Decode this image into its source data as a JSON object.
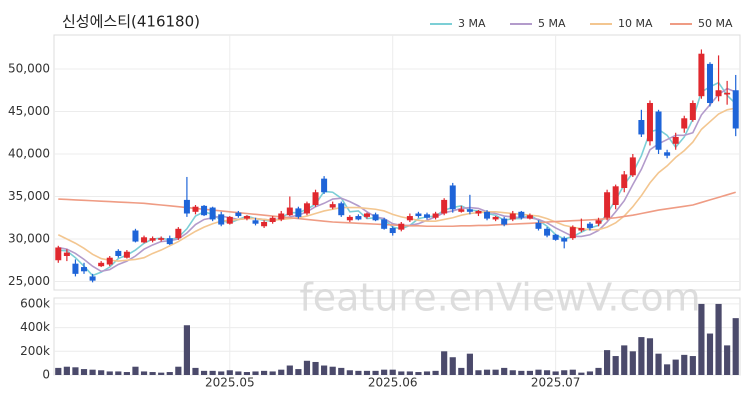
{
  "chart_data": {
    "type": "candlestick",
    "title": "신성에스티(416180)",
    "watermark": "feature.enViewV.com",
    "categories": [
      null,
      null,
      null,
      null,
      null,
      null,
      null,
      null,
      null,
      null,
      null,
      null,
      null,
      null,
      null,
      null,
      null,
      null,
      null,
      null,
      "2025.05",
      null,
      null,
      null,
      null,
      null,
      null,
      null,
      null,
      null,
      null,
      null,
      null,
      null,
      null,
      null,
      null,
      null,
      null,
      "2025.06",
      null,
      null,
      null,
      null,
      null,
      null,
      null,
      null,
      null,
      null,
      null,
      null,
      null,
      null,
      null,
      null,
      null,
      null,
      "2025.07",
      null,
      null,
      null,
      null,
      null,
      null,
      null,
      null,
      null,
      null,
      null,
      null,
      null,
      null,
      null,
      null,
      null,
      null,
      null,
      null,
      null
    ],
    "open": [
      27500,
      28000,
      27100,
      26700,
      25600,
      26800,
      27000,
      28600,
      27800,
      31000,
      29600,
      29800,
      29900,
      30100,
      30100,
      34600,
      33200,
      33900,
      33700,
      32900,
      31800,
      33100,
      32400,
      32200,
      31500,
      32000,
      32300,
      32800,
      33600,
      33000,
      34000,
      37100,
      33700,
      34200,
      32200,
      32700,
      32600,
      32900,
      32300,
      31300,
      31100,
      32200,
      33000,
      32900,
      32500,
      33000,
      36300,
      33200,
      33500,
      33000,
      33200,
      32300,
      32400,
      32300,
      33200,
      32400,
      31900,
      31200,
      30500,
      30100,
      30100,
      31000,
      31800,
      31800,
      32500,
      34000,
      36000,
      37500,
      44000,
      41500,
      45000,
      40200,
      41200,
      43000,
      44000,
      46800,
      50600,
      46800,
      47000,
      47500
    ],
    "high": [
      29200,
      28800,
      27600,
      27200,
      25900,
      27400,
      28000,
      28800,
      28700,
      31200,
      30400,
      30300,
      30300,
      30400,
      31400,
      37300,
      34000,
      34000,
      33800,
      33200,
      32700,
      33300,
      32800,
      32500,
      32200,
      32700,
      33300,
      35000,
      33800,
      34400,
      35800,
      37400,
      34400,
      34400,
      32800,
      32900,
      33100,
      33100,
      32500,
      31500,
      32000,
      33000,
      33200,
      33100,
      33200,
      34800,
      36600,
      33900,
      35200,
      33400,
      33400,
      32700,
      32600,
      33300,
      33300,
      33000,
      32200,
      31400,
      30600,
      30300,
      31600,
      32400,
      32000,
      32500,
      35800,
      36400,
      38000,
      40000,
      45200,
      46300,
      45200,
      40500,
      42500,
      44500,
      46300,
      52300,
      50800,
      51600,
      48600,
      49300
    ],
    "low": [
      27200,
      27400,
      25600,
      25900,
      24900,
      26700,
      26800,
      27800,
      27700,
      29600,
      29500,
      29600,
      29700,
      29300,
      29900,
      32600,
      32900,
      32700,
      32100,
      31500,
      31700,
      32500,
      32200,
      31600,
      31300,
      31800,
      32100,
      32700,
      32400,
      32800,
      33800,
      35300,
      33500,
      32600,
      32000,
      32200,
      32400,
      32100,
      31100,
      30400,
      30900,
      32000,
      32500,
      32300,
      32300,
      32800,
      33100,
      33100,
      32900,
      32700,
      32200,
      32100,
      31500,
      32100,
      32300,
      32300,
      31000,
      30200,
      29800,
      28900,
      29900,
      30800,
      31000,
      31500,
      32200,
      33500,
      35500,
      37300,
      42000,
      41000,
      40000,
      39500,
      40500,
      42500,
      43800,
      46500,
      45600,
      46200,
      45800,
      42100
    ],
    "close": [
      29000,
      28400,
      25900,
      26200,
      25100,
      27200,
      27800,
      28000,
      28500,
      29700,
      30200,
      30100,
      30100,
      29400,
      31200,
      33000,
      33800,
      32800,
      32300,
      31700,
      32600,
      32700,
      32700,
      31800,
      32000,
      32500,
      33000,
      33700,
      32600,
      34200,
      35500,
      35500,
      34100,
      32800,
      32600,
      32300,
      33000,
      32200,
      31200,
      30700,
      31800,
      32700,
      32700,
      32500,
      33000,
      34600,
      33500,
      33500,
      33200,
      33300,
      32400,
      32600,
      31700,
      33000,
      32500,
      32800,
      31200,
      30400,
      29900,
      29700,
      31400,
      31300,
      31300,
      32200,
      35500,
      36200,
      37600,
      39600,
      42300,
      46000,
      40500,
      39800,
      42000,
      44200,
      46000,
      51800,
      46000,
      47500,
      47200,
      43000
    ],
    "up_color": "#e0282e",
    "down_color": "#1e64d8",
    "ylim": [
      24000,
      54000
    ],
    "yticks": [
      {
        "value": 25000,
        "label": "25,000"
      },
      {
        "value": 30000,
        "label": "30,000"
      },
      {
        "value": 35000,
        "label": "35,000"
      },
      {
        "value": 40000,
        "label": "40,000"
      },
      {
        "value": 45000,
        "label": "45,000"
      },
      {
        "value": 50000,
        "label": "50,000"
      }
    ],
    "series": [
      {
        "name": "3 MA",
        "color": "#7ccfd6",
        "values": [
          28700,
          28600,
          27800,
          26800,
          25700,
          26100,
          26700,
          27700,
          28100,
          28700,
          29500,
          30000,
          30100,
          29900,
          30200,
          31200,
          32700,
          33200,
          32900,
          32200,
          31900,
          32300,
          32700,
          32400,
          32200,
          32100,
          32500,
          33100,
          33100,
          33500,
          34100,
          35600,
          35500,
          34800,
          33200,
          33300,
          32400,
          32500,
          32300,
          31400,
          31200,
          31600,
          32400,
          32600,
          32700,
          33400,
          33700,
          33900,
          33400,
          33300,
          33000,
          32800,
          32200,
          32400,
          32400,
          32800,
          32200,
          31500,
          30500,
          30000,
          30300,
          30800,
          31300,
          31600,
          33000,
          34600,
          36400,
          37800,
          39800,
          42600,
          42900,
          42200,
          40800,
          42000,
          44100,
          47300,
          47900,
          48400,
          46900,
          45900
        ]
      },
      {
        "name": "5 MA",
        "color": "#b39bcb",
        "values": [
          29000,
          28800,
          28300,
          27600,
          26800,
          26200,
          26400,
          27000,
          27400,
          28000,
          28800,
          29300,
          29700,
          29800,
          30000,
          30700,
          31700,
          32300,
          32500,
          32700,
          32500,
          32300,
          32400,
          32400,
          32300,
          32200,
          32400,
          32600,
          32800,
          33200,
          33800,
          34200,
          34700,
          34800,
          34400,
          33900,
          33200,
          32600,
          32400,
          31800,
          31600,
          31600,
          31800,
          32200,
          32600,
          33100,
          33300,
          33600,
          33700,
          33600,
          33200,
          33000,
          32700,
          32600,
          32500,
          32500,
          32300,
          31900,
          31300,
          30800,
          30300,
          30300,
          30500,
          31000,
          32000,
          33200,
          34500,
          36400,
          38200,
          40500,
          41200,
          41700,
          42200,
          42200,
          42500,
          44600,
          45800,
          47000,
          47700,
          47300
        ]
      },
      {
        "name": "10 MA",
        "color": "#f3c690",
        "values": [
          30500,
          30000,
          29500,
          28900,
          28200,
          27700,
          27500,
          27400,
          27500,
          27600,
          27800,
          28300,
          28700,
          29200,
          29700,
          30300,
          30900,
          31400,
          31800,
          32100,
          32200,
          32300,
          32400,
          32400,
          32300,
          32200,
          32300,
          32400,
          32500,
          32700,
          33000,
          33300,
          33500,
          33700,
          33700,
          33700,
          33600,
          33500,
          33300,
          32900,
          32600,
          32400,
          32200,
          32100,
          32100,
          32300,
          32500,
          32800,
          33000,
          33100,
          33200,
          33200,
          33100,
          33000,
          32900,
          32800,
          32700,
          32400,
          32000,
          31600,
          31400,
          31200,
          31100,
          31100,
          31400,
          31900,
          32700,
          33800,
          35100,
          36600,
          37800,
          38600,
          39600,
          40400,
          41400,
          42900,
          43800,
          44700,
          45200,
          45400
        ]
      },
      {
        "name": "50 MA",
        "color": "#ef9c84",
        "values": [
          34700,
          34650,
          34600,
          34550,
          34500,
          34450,
          34400,
          34350,
          34300,
          34250,
          34200,
          34100,
          34000,
          33900,
          33800,
          33700,
          33600,
          33500,
          33400,
          33300,
          33200,
          33100,
          33000,
          32900,
          32800,
          32700,
          32600,
          32500,
          32400,
          32300,
          32200,
          32100,
          32000,
          31950,
          31900,
          31850,
          31800,
          31750,
          31700,
          31650,
          31600,
          31550,
          31550,
          31500,
          31500,
          31500,
          31500,
          31550,
          31550,
          31600,
          31600,
          31650,
          31700,
          31750,
          31800,
          31850,
          31900,
          32000,
          32050,
          32100,
          32150,
          32200,
          32250,
          32300,
          32400,
          32500,
          32650,
          32800,
          33000,
          33200,
          33400,
          33550,
          33700,
          33850,
          34000,
          34300,
          34600,
          34900,
          35200,
          35500
        ]
      }
    ],
    "volume": {
      "color": "#4b4a6b",
      "values": [
        60000,
        70000,
        65000,
        50000,
        45000,
        40000,
        30000,
        30000,
        25000,
        70000,
        30000,
        25000,
        20000,
        25000,
        70000,
        420000,
        60000,
        35000,
        35000,
        30000,
        40000,
        30000,
        25000,
        30000,
        35000,
        30000,
        45000,
        80000,
        50000,
        120000,
        110000,
        80000,
        70000,
        60000,
        40000,
        35000,
        35000,
        35000,
        45000,
        45000,
        30000,
        30000,
        25000,
        30000,
        35000,
        200000,
        150000,
        60000,
        180000,
        40000,
        45000,
        45000,
        60000,
        40000,
        35000,
        35000,
        45000,
        40000,
        30000,
        40000,
        45000,
        20000,
        30000,
        60000,
        210000,
        160000,
        250000,
        200000,
        320000,
        310000,
        180000,
        90000,
        130000,
        170000,
        160000,
        600000,
        350000,
        600000,
        250000,
        480000
      ],
      "ylim": [
        0,
        650000
      ],
      "yticks": [
        0,
        {
          "value": 200000,
          "label": "200k"
        },
        {
          "value": 400000,
          "label": "400k"
        },
        {
          "value": 600000,
          "label": "600k"
        }
      ]
    },
    "grid": true
  }
}
